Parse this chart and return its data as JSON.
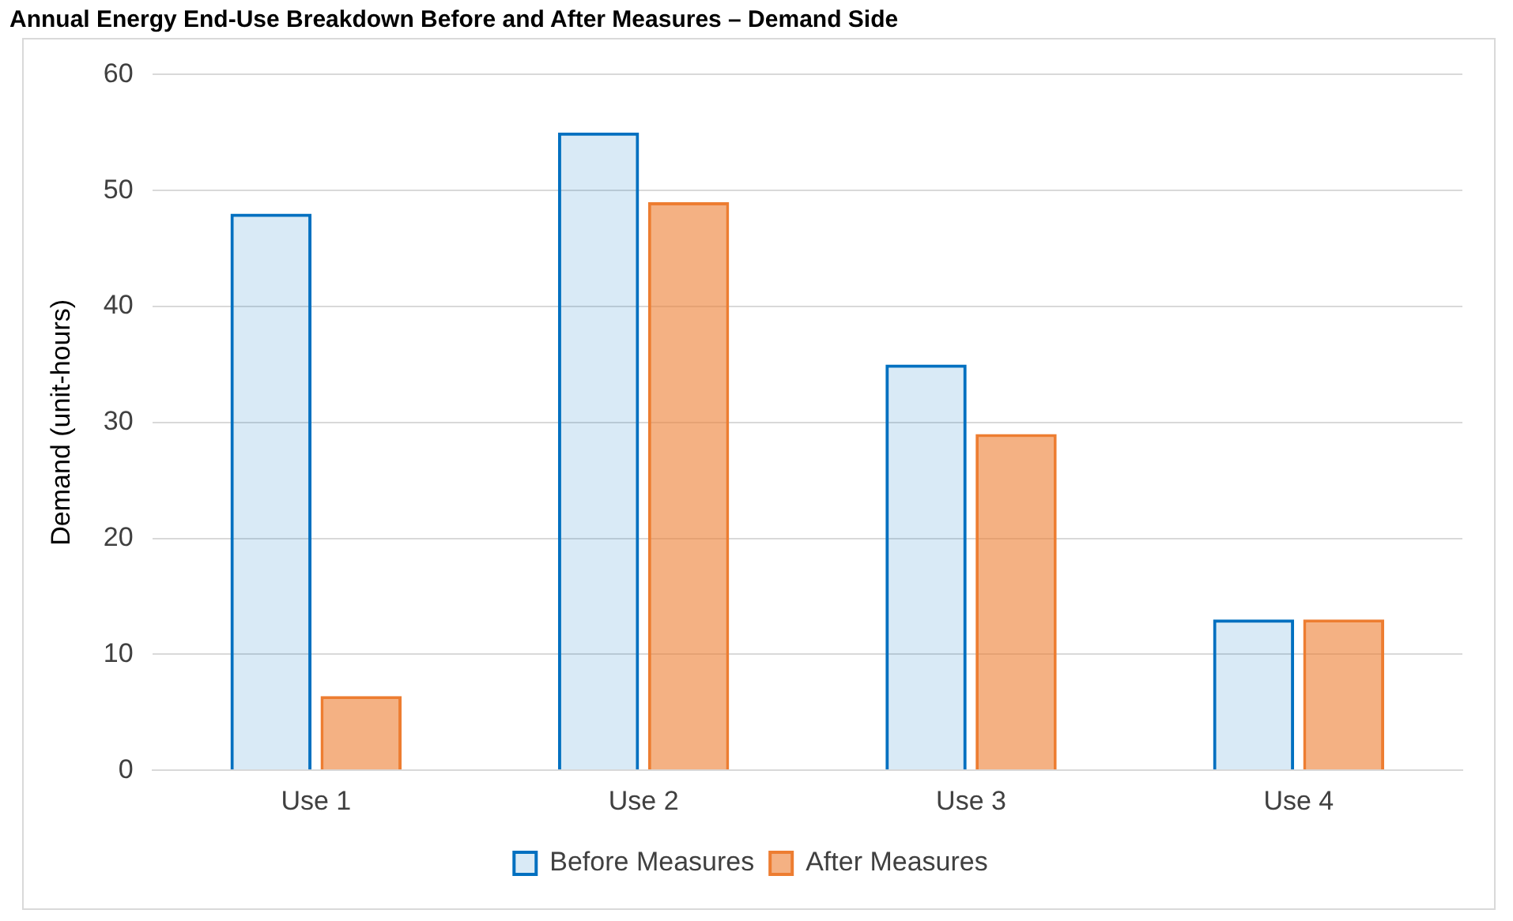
{
  "chart_data": {
    "type": "bar",
    "title": "Annual Energy End-Use Breakdown Before and After Measures – Demand Side",
    "ylabel": "Demand (unit-hours)",
    "categories": [
      "Use 1",
      "Use 2",
      "Use 3",
      "Use 4"
    ],
    "series": [
      {
        "name": "Before Measures",
        "color": "#0070c0",
        "values": [
          48,
          55,
          35,
          13
        ]
      },
      {
        "name": "After Measures",
        "color": "#ed7d31",
        "values": [
          6.4,
          49,
          29,
          13
        ]
      }
    ],
    "ylim": [
      0,
      60
    ],
    "yticks": [
      0,
      10,
      20,
      30,
      40,
      50,
      60
    ],
    "grid": "y",
    "legend": "bottom"
  }
}
